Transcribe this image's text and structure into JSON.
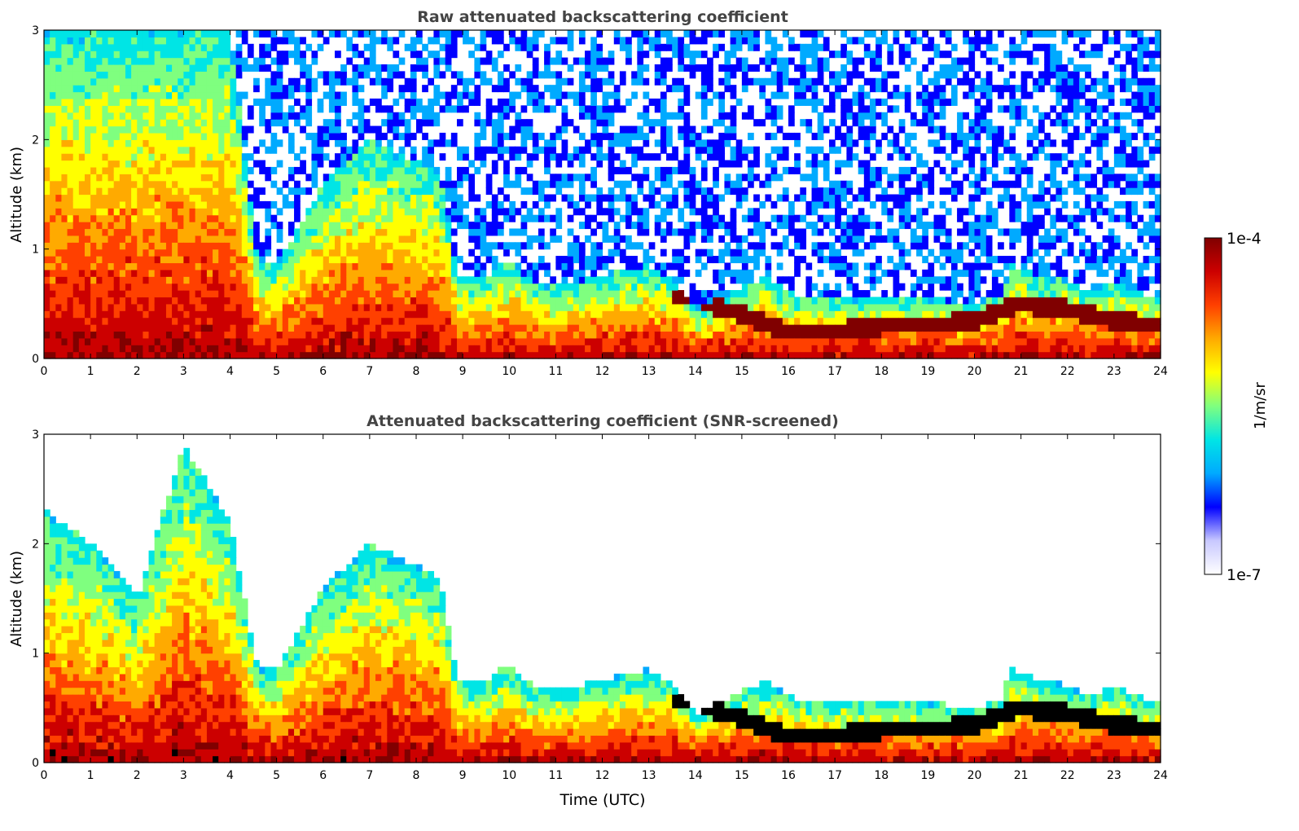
{
  "chart_data": [
    {
      "type": "heatmap",
      "title": "Raw attenuated backscattering coefficient",
      "ylabel": "Altitude (km)",
      "xlabel": "",
      "xlim": [
        0,
        24
      ],
      "ylim": [
        0,
        3
      ],
      "xticks": [
        "0",
        "1",
        "2",
        "3",
        "4",
        "5",
        "6",
        "7",
        "8",
        "9",
        "10",
        "11",
        "12",
        "13",
        "14",
        "15",
        "16",
        "17",
        "18",
        "19",
        "20",
        "21",
        "22",
        "23",
        "24"
      ],
      "yticks": [
        "0",
        "1",
        "2",
        "3"
      ],
      "screened": false,
      "boundary_layer_top_km": [
        [
          0,
          3.0
        ],
        [
          1,
          3.0
        ],
        [
          2,
          3.0
        ],
        [
          3,
          3.0
        ],
        [
          4,
          3.0
        ],
        [
          4.6,
          0.85
        ],
        [
          5,
          0.85
        ],
        [
          6,
          1.6
        ],
        [
          7,
          2.0
        ],
        [
          8,
          1.8
        ],
        [
          8.5,
          1.7
        ],
        [
          8.9,
          0.75
        ],
        [
          9.5,
          0.75
        ],
        [
          10,
          0.9
        ],
        [
          10.5,
          0.7
        ],
        [
          11,
          0.65
        ],
        [
          12,
          0.75
        ],
        [
          13,
          0.85
        ],
        [
          13.6,
          0.7
        ],
        [
          14,
          0.45
        ],
        [
          15,
          0.65
        ],
        [
          15.5,
          0.75
        ],
        [
          16,
          0.6
        ],
        [
          17,
          0.55
        ],
        [
          18,
          0.55
        ],
        [
          19,
          0.55
        ],
        [
          20,
          0.5
        ],
        [
          20.6,
          0.6
        ],
        [
          20.8,
          0.9
        ],
        [
          21,
          0.8
        ],
        [
          22,
          0.7
        ],
        [
          22.5,
          0.6
        ],
        [
          23,
          0.7
        ],
        [
          23.5,
          0.6
        ],
        [
          24,
          0.55
        ]
      ],
      "cloud_layers_km": [
        [
          14,
          0.55
        ],
        [
          15,
          0.4
        ],
        [
          16,
          0.25
        ],
        [
          17,
          0.25
        ],
        [
          18,
          0.3
        ],
        [
          19,
          0.3
        ],
        [
          20,
          0.35
        ],
        [
          21,
          0.5
        ],
        [
          22,
          0.45
        ],
        [
          23,
          0.35
        ],
        [
          24,
          0.3
        ]
      ]
    },
    {
      "type": "heatmap",
      "title": "Attenuated backscattering coefficient (SNR-screened)",
      "ylabel": "Altitude (km)",
      "xlabel": "Time (UTC)",
      "xlim": [
        0,
        24
      ],
      "ylim": [
        0,
        3
      ],
      "xticks": [
        "0",
        "1",
        "2",
        "3",
        "4",
        "5",
        "6",
        "7",
        "8",
        "9",
        "10",
        "11",
        "12",
        "13",
        "14",
        "15",
        "16",
        "17",
        "18",
        "19",
        "20",
        "21",
        "22",
        "23",
        "24"
      ],
      "yticks": [
        "0",
        "1",
        "2",
        "3"
      ],
      "screened": true,
      "boundary_layer_top_km": [
        [
          0,
          2.3
        ],
        [
          1,
          2.0
        ],
        [
          2,
          1.5
        ],
        [
          3,
          2.9
        ],
        [
          4,
          2.2
        ],
        [
          4.6,
          0.85
        ],
        [
          5,
          0.85
        ],
        [
          6,
          1.6
        ],
        [
          7,
          2.0
        ],
        [
          8,
          1.8
        ],
        [
          8.5,
          1.7
        ],
        [
          8.9,
          0.75
        ],
        [
          9.5,
          0.75
        ],
        [
          10,
          0.9
        ],
        [
          10.5,
          0.7
        ],
        [
          11,
          0.65
        ],
        [
          12,
          0.75
        ],
        [
          13,
          0.85
        ],
        [
          13.6,
          0.7
        ],
        [
          14,
          0.45
        ],
        [
          15,
          0.65
        ],
        [
          15.5,
          0.75
        ],
        [
          16,
          0.6
        ],
        [
          17,
          0.55
        ],
        [
          18,
          0.55
        ],
        [
          19,
          0.55
        ],
        [
          20,
          0.5
        ],
        [
          20.6,
          0.6
        ],
        [
          20.8,
          0.9
        ],
        [
          21,
          0.8
        ],
        [
          22,
          0.7
        ],
        [
          22.5,
          0.6
        ],
        [
          23,
          0.7
        ],
        [
          23.5,
          0.6
        ],
        [
          24,
          0.55
        ]
      ],
      "cloud_layers_km": [
        [
          14,
          0.55
        ],
        [
          15,
          0.4
        ],
        [
          16,
          0.25
        ],
        [
          17,
          0.25
        ],
        [
          18,
          0.3
        ],
        [
          19,
          0.3
        ],
        [
          20,
          0.35
        ],
        [
          21,
          0.5
        ],
        [
          22,
          0.45
        ],
        [
          23,
          0.35
        ],
        [
          24,
          0.3
        ]
      ]
    }
  ],
  "colorbar": {
    "label": "1/m/sr",
    "max_label": "1e-4",
    "min_label": "1e-7",
    "colors": [
      "#ffffff",
      "#c8c8ff",
      "#0000ff",
      "#00aaff",
      "#00e5e5",
      "#7fff7f",
      "#ffff00",
      "#ffaa00",
      "#ff4000",
      "#cc0000",
      "#800000"
    ]
  }
}
